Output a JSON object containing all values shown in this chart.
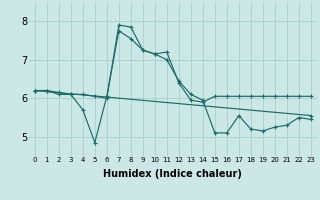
{
  "xlabel": "Humidex (Indice chaleur)",
  "bg_color": "#cce8e6",
  "line_color": "#1a6b6b",
  "grid_color": "#a8d0ce",
  "xlim": [
    -0.5,
    23.5
  ],
  "ylim": [
    4.5,
    8.5
  ],
  "xticks": [
    0,
    1,
    2,
    3,
    4,
    5,
    6,
    7,
    8,
    9,
    10,
    11,
    12,
    13,
    14,
    15,
    16,
    17,
    18,
    19,
    20,
    21,
    22,
    23
  ],
  "yticks": [
    5,
    6,
    7,
    8
  ],
  "series1_y": [
    6.2,
    6.2,
    6.1,
    6.1,
    5.7,
    4.85,
    6.05,
    7.75,
    7.55,
    7.25,
    7.15,
    7.0,
    6.45,
    6.1,
    5.95,
    5.1,
    5.1,
    5.55,
    5.2,
    5.15,
    5.25,
    5.3,
    5.5,
    5.45
  ],
  "series2_y": [
    6.2,
    6.2,
    6.15,
    6.1,
    6.1,
    6.05,
    6.0,
    7.9,
    7.85,
    7.25,
    7.15,
    7.2,
    6.4,
    5.95,
    5.9,
    6.05,
    6.05,
    6.05,
    6.05,
    6.05,
    6.05,
    6.05,
    6.05,
    6.05
  ],
  "series3_x": [
    0,
    23
  ],
  "series3_y": [
    6.2,
    5.55
  ],
  "xlabel_fontsize": 7,
  "tick_fontsize_x": 5,
  "tick_fontsize_y": 7
}
